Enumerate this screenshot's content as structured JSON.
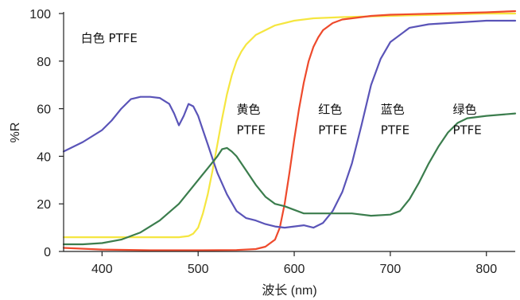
{
  "chart_data": {
    "type": "line",
    "xlabel": "波长 (nm)",
    "ylabel": "%R",
    "xlim": [
      360,
      830
    ],
    "ylim": [
      0,
      100
    ],
    "x_ticks": [
      400,
      500,
      600,
      700,
      800
    ],
    "y_ticks": [
      0,
      20,
      40,
      60,
      80,
      100
    ],
    "grid": false,
    "annotations": [
      {
        "id": "white",
        "lines": [
          "白色 PTFE"
        ],
        "x": 378,
        "y": 88
      },
      {
        "id": "yellow",
        "lines": [
          "黄色",
          "PTFE"
        ],
        "x": 540,
        "y": 58
      },
      {
        "id": "red",
        "lines": [
          "红色",
          "PTFE"
        ],
        "x": 625,
        "y": 58
      },
      {
        "id": "blue",
        "lines": [
          "蓝色",
          "PTFE"
        ],
        "x": 690,
        "y": 58
      },
      {
        "id": "green",
        "lines": [
          "绿色",
          "PTFE"
        ],
        "x": 765,
        "y": 58
      }
    ],
    "series": [
      {
        "id": "yellow",
        "color": "#f5e640",
        "x": [
          360,
          400,
          450,
          480,
          490,
          495,
          500,
          505,
          510,
          515,
          520,
          525,
          530,
          535,
          540,
          545,
          550,
          560,
          570,
          580,
          600,
          620,
          650,
          700,
          750,
          800,
          830
        ],
        "y": [
          6,
          6,
          6,
          6,
          6.5,
          7.5,
          10,
          16,
          24,
          34,
          45,
          56,
          66,
          74,
          80,
          84,
          87,
          91,
          93,
          95,
          97,
          98,
          98.5,
          99,
          99.5,
          100,
          100
        ]
      },
      {
        "id": "red",
        "color": "#ee4a2c",
        "x": [
          360,
          400,
          450,
          500,
          540,
          560,
          570,
          580,
          585,
          590,
          595,
          600,
          605,
          610,
          615,
          620,
          625,
          630,
          640,
          650,
          660,
          680,
          700,
          750,
          800,
          830
        ],
        "y": [
          1.5,
          0.8,
          0.5,
          0.5,
          0.6,
          1,
          2,
          5,
          10,
          20,
          33,
          47,
          60,
          71,
          80,
          86,
          90,
          93,
          96,
          97.5,
          98,
          99,
          99.5,
          100,
          100.5,
          101
        ]
      },
      {
        "id": "blue",
        "color": "#5a54b8",
        "x": [
          360,
          380,
          400,
          410,
          420,
          430,
          440,
          450,
          460,
          470,
          475,
          480,
          485,
          490,
          495,
          500,
          505,
          510,
          515,
          520,
          530,
          540,
          550,
          555,
          560,
          570,
          580,
          590,
          600,
          610,
          620,
          630,
          640,
          650,
          660,
          670,
          680,
          690,
          700,
          720,
          740,
          760,
          780,
          800,
          830
        ],
        "y": [
          42,
          46,
          51,
          55,
          60,
          64,
          65,
          65,
          64.5,
          62,
          58,
          53,
          57,
          62,
          61,
          57,
          51,
          45,
          39,
          33,
          24,
          17,
          14,
          13.5,
          13,
          11.5,
          10.5,
          10,
          10.5,
          11,
          10,
          12,
          17,
          25,
          37,
          53,
          70,
          81,
          88,
          94,
          95.5,
          96,
          96.5,
          97,
          97
        ]
      },
      {
        "id": "green",
        "color": "#3b7d4d",
        "x": [
          360,
          380,
          400,
          420,
          440,
          460,
          480,
          500,
          510,
          520,
          525,
          530,
          535,
          540,
          550,
          560,
          570,
          580,
          590,
          600,
          610,
          620,
          640,
          660,
          680,
          700,
          710,
          720,
          730,
          740,
          750,
          760,
          770,
          780,
          800,
          830
        ],
        "y": [
          3,
          3,
          3.5,
          5,
          8,
          13,
          20,
          30,
          35,
          40,
          43,
          43.5,
          42,
          40,
          34,
          28,
          23,
          20,
          19,
          17.5,
          16,
          16,
          16,
          16,
          15,
          15.5,
          17,
          22,
          29,
          37,
          44,
          50,
          54,
          56,
          57,
          58
        ]
      }
    ]
  }
}
